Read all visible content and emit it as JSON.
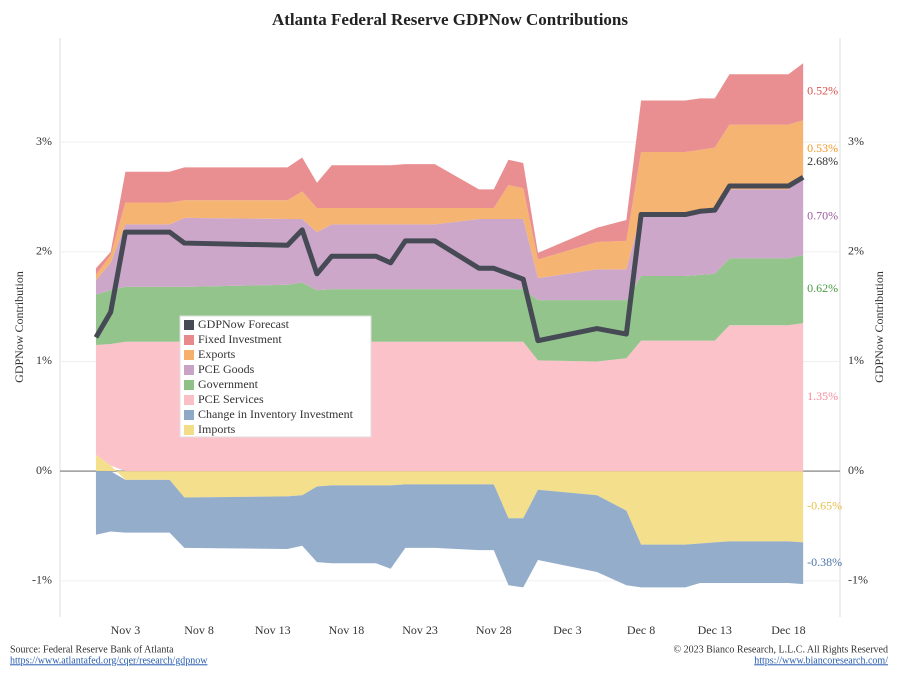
{
  "chart_data": {
    "type": "stacked_area",
    "title": "Atlanta Federal Reserve GDPNow Contributions",
    "ylabel": "GDPNow Contribution",
    "y2label": "GDPNow Contribution",
    "x": [
      1,
      2,
      3,
      6,
      7,
      14,
      15,
      16,
      17,
      20,
      21,
      22,
      24,
      27,
      28,
      29,
      30,
      31,
      35,
      37,
      38,
      41,
      42,
      43,
      44,
      48,
      49
    ],
    "xlim": [
      -1.44,
      51.5
    ],
    "xticks": [
      {
        "value": 3,
        "label": "Nov 3"
      },
      {
        "value": 8,
        "label": "Nov 8"
      },
      {
        "value": 13,
        "label": "Nov 13"
      },
      {
        "value": 18,
        "label": "Nov 18"
      },
      {
        "value": 23,
        "label": "Nov 23"
      },
      {
        "value": 28,
        "label": "Nov 28"
      },
      {
        "value": 33,
        "label": "Dec 3"
      },
      {
        "value": 38,
        "label": "Dec 8"
      },
      {
        "value": 43,
        "label": "Dec 13"
      },
      {
        "value": 48,
        "label": "Dec 18"
      }
    ],
    "ylim": [
      -1.33,
      3.95
    ],
    "yticks": [
      {
        "value": -1,
        "label": "-1%"
      },
      {
        "value": 0,
        "label": "0%"
      },
      {
        "value": 1,
        "label": "1%"
      },
      {
        "value": 2,
        "label": "2%"
      },
      {
        "value": 3,
        "label": "3%"
      }
    ],
    "y2lim": [
      -1.33,
      3.95
    ],
    "y2ticks": [
      {
        "value": -1,
        "label": "-1%"
      },
      {
        "value": 0,
        "label": "0%"
      },
      {
        "value": 1,
        "label": "1%"
      },
      {
        "value": 2,
        "label": "2%"
      },
      {
        "value": 3,
        "label": "3%"
      }
    ],
    "grid": true,
    "series": [
      {
        "name": "GDPNow Forecast",
        "type": "line",
        "color": "#454a55",
        "label_color": "#333333",
        "values": [
          1.22,
          1.45,
          2.18,
          2.18,
          2.08,
          2.06,
          2.2,
          1.8,
          1.96,
          1.96,
          1.9,
          2.1,
          2.1,
          1.85,
          1.85,
          1.8,
          1.75,
          1.19,
          1.3,
          1.25,
          2.34,
          2.34,
          2.37,
          2.38,
          2.6,
          2.6,
          2.68
        ],
        "value_labels": [
          null,
          null,
          null,
          null,
          null,
          null,
          null,
          null,
          null,
          null,
          null,
          null,
          null,
          null,
          null,
          null,
          null,
          null,
          null,
          null,
          null,
          null,
          null,
          null,
          null,
          null,
          "2.68%"
        ]
      },
      {
        "name": "Fixed Investment",
        "color": "#e8898b",
        "label_color": "#d9534f",
        "values": [
          0.06,
          0.03,
          0.28,
          0.28,
          0.3,
          0.3,
          0.31,
          0.23,
          0.39,
          0.39,
          0.39,
          0.4,
          0.4,
          0.17,
          0.17,
          0.23,
          0.23,
          0.06,
          0.13,
          0.19,
          0.47,
          0.47,
          0.47,
          0.45,
          0.46,
          0.46,
          0.52
        ],
        "value_labels": [
          null,
          null,
          null,
          null,
          null,
          null,
          null,
          null,
          null,
          null,
          null,
          null,
          null,
          null,
          null,
          null,
          null,
          null,
          null,
          null,
          null,
          null,
          null,
          null,
          null,
          null,
          "0.52%"
        ]
      },
      {
        "name": "Exports",
        "color": "#f5b06b",
        "label_color": "#f0982b",
        "values": [
          0.05,
          0.07,
          0.2,
          0.2,
          0.16,
          0.17,
          0.25,
          0.22,
          0.15,
          0.15,
          0.15,
          0.15,
          0.15,
          0.1,
          0.1,
          0.31,
          0.28,
          0.17,
          0.25,
          0.26,
          0.56,
          0.56,
          0.56,
          0.55,
          0.59,
          0.59,
          0.53
        ],
        "value_labels": [
          null,
          null,
          null,
          null,
          null,
          null,
          null,
          null,
          null,
          null,
          null,
          null,
          null,
          null,
          null,
          null,
          null,
          null,
          null,
          null,
          null,
          null,
          null,
          null,
          null,
          null,
          "0.53%"
        ]
      },
      {
        "name": "PCE Goods",
        "color": "#caa2c6",
        "label_color": "#9a5ba0",
        "values": [
          0.13,
          0.25,
          0.57,
          0.57,
          0.63,
          0.6,
          0.58,
          0.53,
          0.59,
          0.59,
          0.59,
          0.59,
          0.59,
          0.64,
          0.64,
          0.64,
          0.64,
          0.2,
          0.28,
          0.28,
          0.57,
          0.57,
          0.58,
          0.6,
          0.63,
          0.63,
          0.7
        ],
        "value_labels": [
          null,
          null,
          null,
          null,
          null,
          null,
          null,
          null,
          null,
          null,
          null,
          null,
          null,
          null,
          null,
          null,
          null,
          null,
          null,
          null,
          null,
          null,
          null,
          null,
          null,
          null,
          "0.70%"
        ]
      },
      {
        "name": "Government",
        "color": "#8dc186",
        "label_color": "#4a9a44",
        "values": [
          0.46,
          0.49,
          0.5,
          0.5,
          0.5,
          0.52,
          0.54,
          0.47,
          0.48,
          0.48,
          0.48,
          0.48,
          0.48,
          0.48,
          0.48,
          0.48,
          0.48,
          0.55,
          0.56,
          0.53,
          0.59,
          0.59,
          0.6,
          0.61,
          0.61,
          0.61,
          0.62
        ],
        "value_labels": [
          null,
          null,
          null,
          null,
          null,
          null,
          null,
          null,
          null,
          null,
          null,
          null,
          null,
          null,
          null,
          null,
          null,
          null,
          null,
          null,
          null,
          null,
          null,
          null,
          null,
          null,
          "0.62%"
        ]
      },
      {
        "name": "PCE Services",
        "color": "#fbbfc6",
        "label_color": "#f48c9a",
        "values": [
          1.0,
          1.11,
          1.18,
          1.18,
          1.18,
          1.18,
          1.18,
          1.18,
          1.18,
          1.18,
          1.18,
          1.18,
          1.18,
          1.18,
          1.18,
          1.18,
          1.18,
          1.01,
          1.0,
          1.03,
          1.19,
          1.19,
          1.19,
          1.19,
          1.33,
          1.33,
          1.35
        ],
        "value_labels": [
          null,
          null,
          null,
          null,
          null,
          null,
          null,
          null,
          null,
          null,
          null,
          null,
          null,
          null,
          null,
          null,
          null,
          null,
          null,
          null,
          null,
          null,
          null,
          null,
          null,
          null,
          "1.35%"
        ]
      },
      {
        "name": "Change in Inventory Investment",
        "color": "#8ea9c8",
        "label_color": "#4d76a8",
        "values": [
          -0.58,
          -0.55,
          -0.48,
          -0.48,
          -0.46,
          -0.48,
          -0.46,
          -0.69,
          -0.71,
          -0.71,
          -0.76,
          -0.58,
          -0.58,
          -0.6,
          -0.6,
          -0.61,
          -0.63,
          -0.64,
          -0.7,
          -0.68,
          -0.39,
          -0.39,
          -0.36,
          -0.37,
          -0.38,
          -0.38,
          -0.38
        ],
        "value_labels": [
          null,
          null,
          null,
          null,
          null,
          null,
          null,
          null,
          null,
          null,
          null,
          null,
          null,
          null,
          null,
          null,
          null,
          null,
          null,
          null,
          null,
          null,
          null,
          null,
          null,
          null,
          "-0.38%"
        ]
      },
      {
        "name": "Imports",
        "color": "#f3dd86",
        "label_color": "#e8c04a",
        "values": [
          0.15,
          0.05,
          -0.08,
          -0.08,
          -0.24,
          -0.23,
          -0.22,
          -0.14,
          -0.13,
          -0.13,
          -0.13,
          -0.12,
          -0.12,
          -0.12,
          -0.12,
          -0.43,
          -0.43,
          -0.17,
          -0.22,
          -0.36,
          -0.67,
          -0.67,
          -0.66,
          -0.65,
          -0.64,
          -0.64,
          -0.65
        ],
        "value_labels": [
          null,
          null,
          null,
          null,
          null,
          null,
          null,
          null,
          null,
          null,
          null,
          null,
          null,
          null,
          null,
          null,
          null,
          null,
          null,
          null,
          null,
          null,
          null,
          null,
          null,
          null,
          "-0.65%"
        ]
      }
    ]
  },
  "footer": {
    "source": "Source: Federal Reserve Bank of Atlanta",
    "source_url": "https://www.atlantafed.org/cqer/research/gdpnow",
    "copyright": "© 2023 Bianco Research, L.L.C. All Rights Reserved",
    "copyright_url": "https://www.biancoresearch.com/"
  }
}
